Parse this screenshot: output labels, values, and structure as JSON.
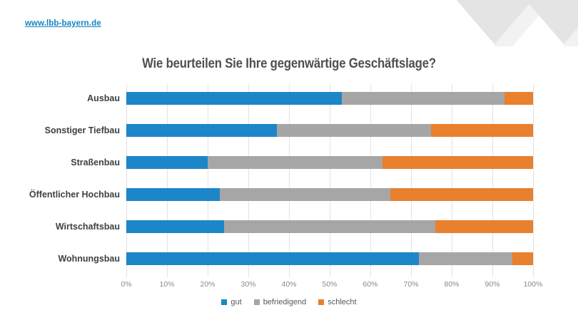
{
  "header": {
    "url": "www.lbb-bayern.de"
  },
  "decoration": {
    "cubes_icon": "isometric-cubes",
    "cube_top_color": "#E4E4E4",
    "cube_side_color": "#F2F2F2"
  },
  "chart_data": {
    "type": "bar",
    "orientation": "horizontal-stacked",
    "title": "Wie beurteilen Sie Ihre gegenwärtige Geschäftslage?",
    "categories": [
      "Ausbau",
      "Sonstiger Tiefbau",
      "Straßenbau",
      "Öffentlicher Hochbau",
      "Wirtschaftsbau",
      "Wohnungsbau"
    ],
    "series": [
      {
        "name": "gut",
        "color": "#1D86C8",
        "values": [
          53,
          37,
          20,
          23,
          24,
          72
        ]
      },
      {
        "name": "befriedigend",
        "color": "#A6A6A6",
        "values": [
          40,
          38,
          43,
          42,
          52,
          23
        ]
      },
      {
        "name": "schlecht",
        "color": "#E8802E",
        "values": [
          7,
          25,
          37,
          35,
          24,
          5
        ]
      }
    ],
    "xlabel": "",
    "ylabel": "",
    "xlim": [
      0,
      100
    ],
    "x_ticks": [
      "0%",
      "10%",
      "20%",
      "30%",
      "40%",
      "50%",
      "60%",
      "70%",
      "80%",
      "90%",
      "100%"
    ],
    "grid": true,
    "legend_position": "bottom"
  }
}
